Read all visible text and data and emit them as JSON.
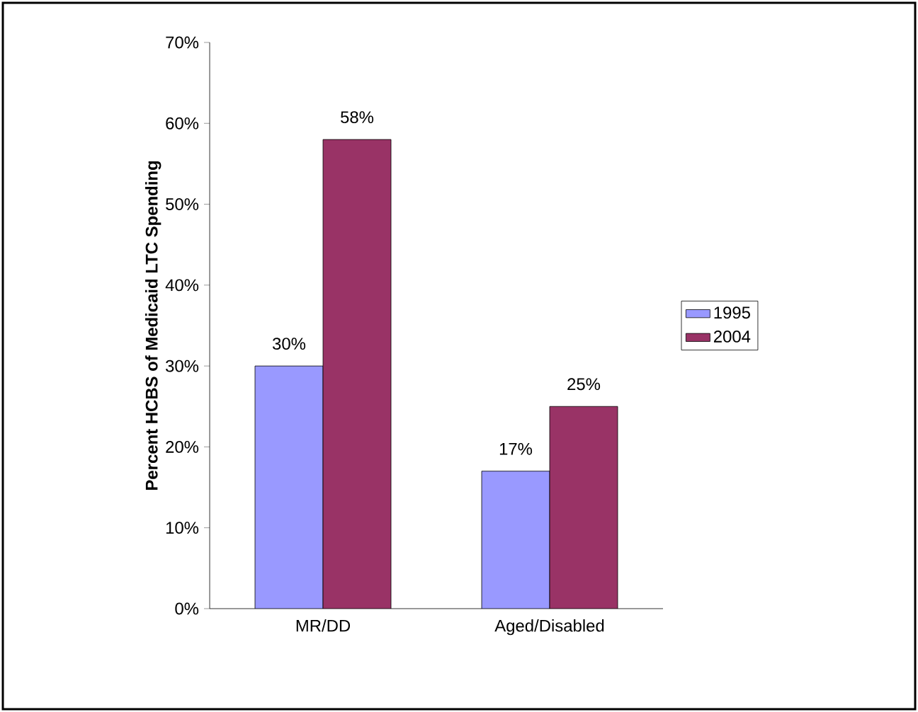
{
  "chart_data": {
    "type": "bar",
    "ylabel": "Percent HCBS of Medicaid LTC Spending",
    "categories": [
      "MR/DD",
      "Aged/Disabled"
    ],
    "series": [
      {
        "name": "1995",
        "color": "#9999ff",
        "values": [
          30,
          17
        ],
        "value_labels": [
          "30%",
          "17%"
        ]
      },
      {
        "name": "2004",
        "color": "#993366",
        "values": [
          58,
          25
        ],
        "value_labels": [
          "58%",
          "25%"
        ]
      }
    ],
    "ylim": [
      0,
      70
    ],
    "yticks": [
      {
        "value": 0,
        "label": "0%"
      },
      {
        "value": 10,
        "label": "10%"
      },
      {
        "value": 20,
        "label": "20%"
      },
      {
        "value": 30,
        "label": "30%"
      },
      {
        "value": 40,
        "label": "40%"
      },
      {
        "value": 50,
        "label": "50%"
      },
      {
        "value": 60,
        "label": "60%"
      },
      {
        "value": 70,
        "label": "70%"
      }
    ],
    "legend": "right",
    "grid": false
  }
}
